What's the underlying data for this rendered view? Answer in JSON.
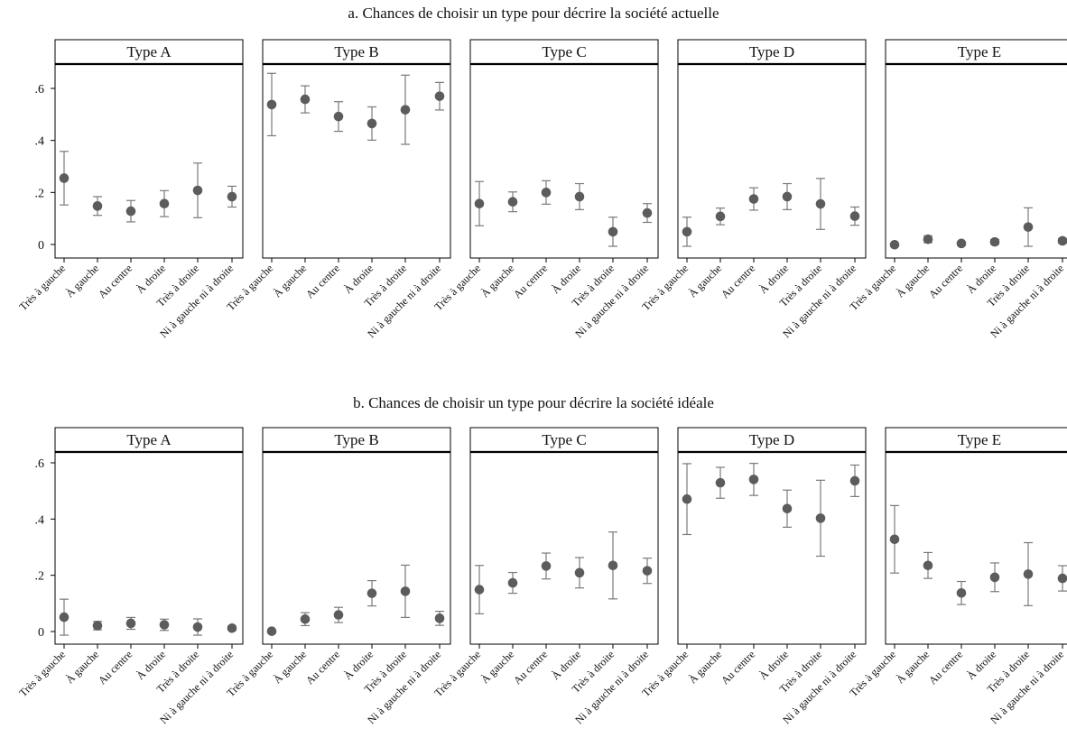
{
  "categories": [
    "Très à gauche",
    "À gauche",
    "Au centre",
    "À droite",
    "Très à droite",
    "Ni à gauche ni à droite"
  ],
  "y_ticks": [
    0,
    0.2,
    0.4,
    0.6
  ],
  "y_tick_labels": [
    "0",
    ".2",
    ".4",
    ".6"
  ],
  "colors": {
    "marker": "#5c5c5c",
    "errorbar": "#7a7a7a",
    "frame": "#000000"
  },
  "chart_data": [
    {
      "type": "scatter",
      "title": "a. Chances de choisir un type pour décrire la société actuelle",
      "ylim": [
        -0.04,
        0.7
      ],
      "panels": [
        {
          "name": "Type A",
          "values": [
            0.255,
            0.148,
            0.128,
            0.157,
            0.208,
            0.184
          ],
          "ci_low": [
            0.152,
            0.112,
            0.087,
            0.107,
            0.103,
            0.144
          ],
          "ci_high": [
            0.358,
            0.184,
            0.169,
            0.207,
            0.313,
            0.224
          ]
        },
        {
          "name": "Type B",
          "values": [
            0.538,
            0.558,
            0.492,
            0.465,
            0.518,
            0.57
          ],
          "ci_low": [
            0.418,
            0.506,
            0.435,
            0.401,
            0.385,
            0.517
          ],
          "ci_high": [
            0.658,
            0.61,
            0.549,
            0.529,
            0.651,
            0.623
          ]
        },
        {
          "name": "Type C",
          "values": [
            0.157,
            0.164,
            0.2,
            0.184,
            0.049,
            0.121
          ],
          "ci_low": [
            0.072,
            0.126,
            0.155,
            0.134,
            -0.007,
            0.085
          ],
          "ci_high": [
            0.242,
            0.202,
            0.245,
            0.234,
            0.105,
            0.157
          ]
        },
        {
          "name": "Type D",
          "values": [
            0.049,
            0.108,
            0.175,
            0.184,
            0.156,
            0.109
          ],
          "ci_low": [
            -0.007,
            0.076,
            0.132,
            0.134,
            0.058,
            0.074
          ],
          "ci_high": [
            0.105,
            0.14,
            0.218,
            0.234,
            0.254,
            0.144
          ]
        },
        {
          "name": "Type E",
          "values": [
            -0.001,
            0.02,
            0.004,
            0.01,
            0.067,
            0.014
          ],
          "ci_low": [
            -0.003,
            0.007,
            -0.002,
            0.001,
            -0.007,
            0.005
          ],
          "ci_high": [
            0.001,
            0.033,
            0.01,
            0.019,
            0.141,
            0.023
          ]
        }
      ]
    },
    {
      "type": "scatter",
      "title": "b. Chances de choisir un type pour décrire la société idéale",
      "ylim": [
        -0.04,
        0.7
      ],
      "panels": [
        {
          "name": "Type A",
          "values": [
            0.051,
            0.021,
            0.029,
            0.024,
            0.016,
            0.012
          ],
          "ci_low": [
            -0.013,
            0.006,
            0.008,
            0.004,
            -0.013,
            0.005
          ],
          "ci_high": [
            0.115,
            0.036,
            0.05,
            0.044,
            0.045,
            0.019
          ]
        },
        {
          "name": "Type B",
          "values": [
            0.001,
            0.044,
            0.059,
            0.136,
            0.143,
            0.047
          ],
          "ci_low": [
            -0.001,
            0.021,
            0.032,
            0.091,
            0.05,
            0.022
          ],
          "ci_high": [
            0.003,
            0.067,
            0.086,
            0.181,
            0.236,
            0.072
          ]
        },
        {
          "name": "Type C",
          "values": [
            0.149,
            0.173,
            0.233,
            0.209,
            0.235,
            0.216
          ],
          "ci_low": [
            0.063,
            0.136,
            0.187,
            0.155,
            0.116,
            0.171
          ],
          "ci_high": [
            0.235,
            0.21,
            0.279,
            0.263,
            0.354,
            0.261
          ]
        },
        {
          "name": "Type D",
          "values": [
            0.471,
            0.529,
            0.541,
            0.437,
            0.403,
            0.536
          ],
          "ci_low": [
            0.345,
            0.474,
            0.484,
            0.371,
            0.268,
            0.48
          ],
          "ci_high": [
            0.597,
            0.584,
            0.598,
            0.503,
            0.538,
            0.592
          ]
        },
        {
          "name": "Type E",
          "values": [
            0.328,
            0.235,
            0.137,
            0.193,
            0.204,
            0.189
          ],
          "ci_low": [
            0.208,
            0.189,
            0.096,
            0.142,
            0.092,
            0.144
          ],
          "ci_high": [
            0.448,
            0.281,
            0.178,
            0.244,
            0.316,
            0.234
          ]
        }
      ]
    }
  ]
}
